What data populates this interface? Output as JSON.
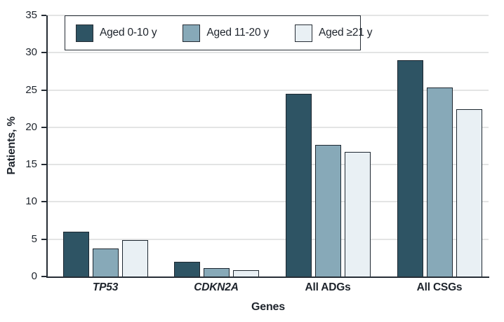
{
  "chart_data": {
    "type": "bar",
    "title": "",
    "xlabel": "Genes",
    "ylabel": "Patients, %",
    "ylim": [
      0,
      35
    ],
    "ytick_step": 5,
    "grid": true,
    "legend_position": "top-left-inside",
    "categories": [
      "TP53",
      "CDKN2A",
      "All ADGs",
      "All CSGs"
    ],
    "categories_italic": [
      true,
      true,
      false,
      false
    ],
    "series": [
      {
        "name": "Aged 0-10 y",
        "color": "#2e5464",
        "values": [
          6.0,
          2.0,
          24.5,
          29.0
        ]
      },
      {
        "name": "Aged 11-20 y",
        "color": "#87a9b8",
        "values": [
          3.8,
          1.1,
          17.6,
          25.3
        ]
      },
      {
        "name": "Aged ≥21 y",
        "color": "#e9f0f4",
        "values": [
          4.9,
          0.8,
          16.7,
          22.4
        ]
      }
    ],
    "colors": {
      "bar_border": "#1d2730",
      "axis": "#262d35",
      "gridline": "#e3e4e4",
      "text": "#1e242c",
      "background": "#ffffff"
    }
  }
}
